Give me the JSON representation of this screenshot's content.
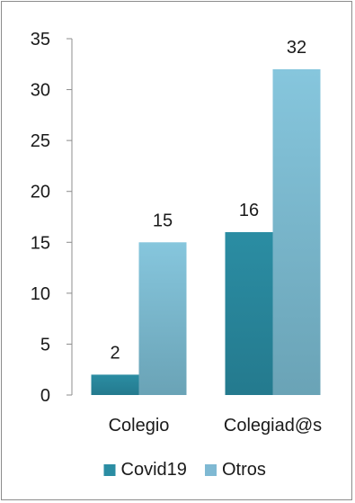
{
  "chart_data": {
    "type": "bar",
    "title": "",
    "xlabel": "",
    "ylabel": "",
    "categories": [
      "Colegio",
      "Colegiad@s"
    ],
    "series": [
      {
        "name": "Covid19",
        "values": [
          2,
          16
        ],
        "color": "#2b8da3"
      },
      {
        "name": "Otros",
        "values": [
          15,
          32
        ],
        "color": "#7fb9d3"
      }
    ],
    "ylim": [
      0,
      35
    ],
    "yticks": [
      0,
      5,
      10,
      15,
      20,
      25,
      30,
      35
    ],
    "grid": false,
    "legend_position": "bottom"
  }
}
